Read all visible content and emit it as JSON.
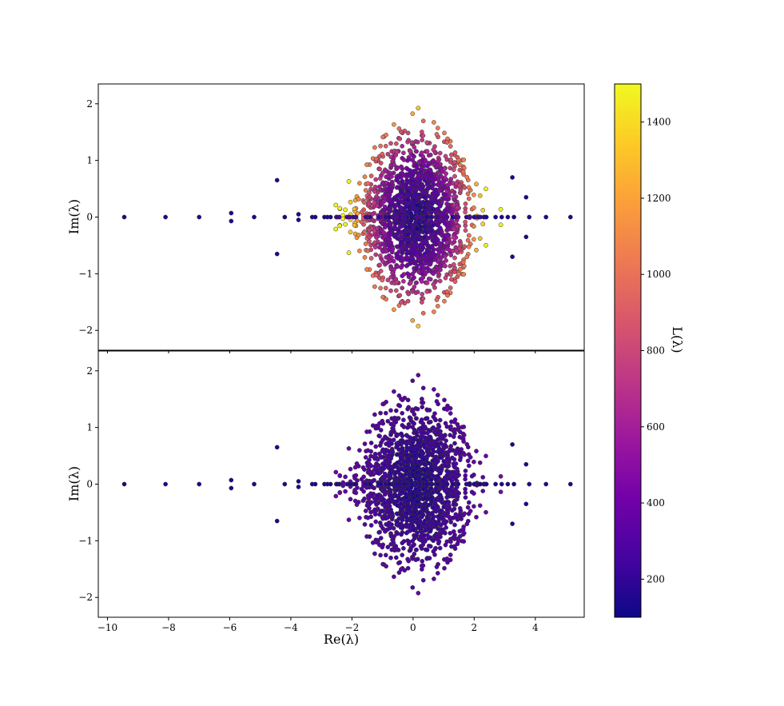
{
  "chart_data": [
    {
      "type": "scatter",
      "panel": "top",
      "title": "",
      "xlabel": "",
      "ylabel": "Im(λ)",
      "xlim": [
        -10.3,
        5.6
      ],
      "ylim": [
        -2.35,
        2.35
      ],
      "xticks": [
        -10,
        -8,
        -6,
        -4,
        -2,
        0,
        2,
        4
      ],
      "yticks": [
        -2,
        -1,
        0,
        1,
        2
      ],
      "show_xtick_labels": false,
      "color_by": "L(λ)",
      "colormap": "plasma",
      "real_axis_points": [
        {
          "x": -9.45,
          "y": 0,
          "c": 150
        },
        {
          "x": -8.1,
          "y": 0,
          "c": 150
        },
        {
          "x": -7.0,
          "y": 0,
          "c": 150
        },
        {
          "x": -5.95,
          "y": 0.07,
          "c": 150
        },
        {
          "x": -5.95,
          "y": -0.07,
          "c": 150
        },
        {
          "x": -5.2,
          "y": 0,
          "c": 150
        },
        {
          "x": -4.45,
          "y": 0.65,
          "c": 150
        },
        {
          "x": -4.45,
          "y": -0.65,
          "c": 150
        },
        {
          "x": -4.2,
          "y": 0,
          "c": 150
        },
        {
          "x": -3.75,
          "y": 0.05,
          "c": 150
        },
        {
          "x": -3.75,
          "y": -0.05,
          "c": 150
        },
        {
          "x": -3.3,
          "y": 0,
          "c": 150
        },
        {
          "x": -3.2,
          "y": 0,
          "c": 150
        },
        {
          "x": -2.9,
          "y": 0,
          "c": 150
        },
        {
          "x": -2.8,
          "y": 0,
          "c": 150
        },
        {
          "x": -2.7,
          "y": 0,
          "c": 150
        },
        {
          "x": 2.4,
          "y": 0,
          "c": 150
        },
        {
          "x": 2.7,
          "y": 0,
          "c": 150
        },
        {
          "x": 2.9,
          "y": 0,
          "c": 150
        },
        {
          "x": 3.1,
          "y": 0,
          "c": 150
        },
        {
          "x": 3.3,
          "y": 0,
          "c": 150
        },
        {
          "x": 3.8,
          "y": 0,
          "c": 150
        },
        {
          "x": 4.35,
          "y": 0,
          "c": 150
        },
        {
          "x": 5.15,
          "y": 0,
          "c": 150
        },
        {
          "x": 3.7,
          "y": 0.35,
          "c": 150
        },
        {
          "x": 3.7,
          "y": -0.35,
          "c": 150
        },
        {
          "x": 3.25,
          "y": 0.7,
          "c": 150
        },
        {
          "x": 3.25,
          "y": -0.7,
          "c": 150
        }
      ],
      "cloud": {
        "x_range": [
          -3.0,
          3.3
        ],
        "y_range": [
          -2.15,
          2.15
        ],
        "approx_points": 1600,
        "c_range": [
          100,
          1500
        ]
      }
    },
    {
      "type": "scatter",
      "panel": "bottom",
      "title": "",
      "xlabel": "Re(λ)",
      "ylabel": "Im(λ)",
      "xlim": [
        -10.3,
        5.6
      ],
      "ylim": [
        -2.35,
        2.35
      ],
      "xticks": [
        -10,
        -8,
        -6,
        -4,
        -2,
        0,
        2,
        4
      ],
      "yticks": [
        -2,
        -1,
        0,
        1,
        2
      ],
      "show_xtick_labels": true,
      "color_by": "L(λ)",
      "colormap": "plasma",
      "note_values": "same eigenvalue locations as top panel, colored with low L(λ) values (≈100–450)",
      "cloud": {
        "x_range": [
          -3.0,
          3.3
        ],
        "y_range": [
          -2.15,
          2.15
        ],
        "approx_points": 1600,
        "c_range": [
          100,
          450
        ]
      }
    }
  ],
  "colorbar": {
    "label": "L(λ)",
    "range": [
      100,
      1500
    ],
    "ticks": [
      200,
      400,
      600,
      800,
      1000,
      1200,
      1400
    ],
    "colormap": "plasma",
    "colors": [
      "#0d0887",
      "#46039f",
      "#7201a8",
      "#9c179e",
      "#bd3786",
      "#d8576b",
      "#ed7953",
      "#fb9f3a",
      "#fdca26",
      "#f0f921"
    ]
  },
  "labels": {
    "top_ylabel": "Im(λ)",
    "bottom_ylabel": "Im(λ)",
    "xlabel": "Re(λ)",
    "cbar_label": "L(λ)"
  }
}
